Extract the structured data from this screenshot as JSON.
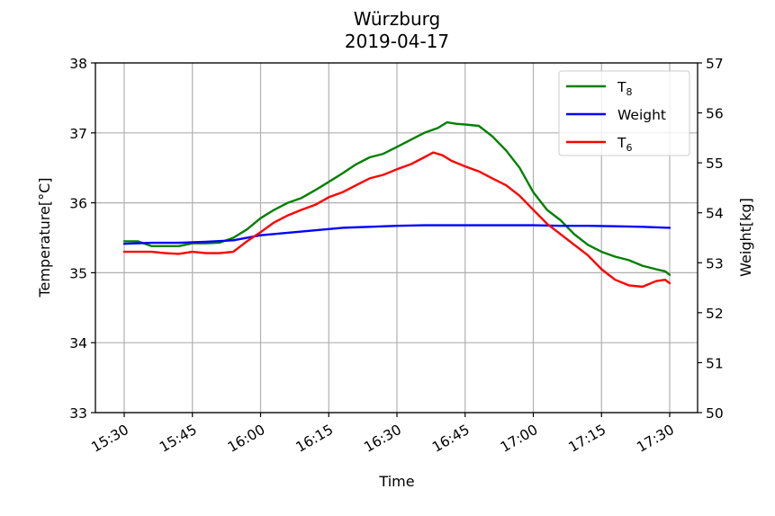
{
  "chart_data": {
    "type": "line",
    "title_line1": "Würzburg",
    "title_line2": "2019-04-17",
    "xlabel": "Time",
    "ylabel_left": "Temperature[°C]",
    "ylabel_right": "Weight[kg]",
    "grid": true,
    "legend_position": "top-right",
    "x_ticks": [
      "15:30",
      "15:45",
      "16:00",
      "16:15",
      "16:30",
      "16:45",
      "17:00",
      "17:15",
      "17:30"
    ],
    "x_range_minutes": [
      930,
      1050
    ],
    "ylim_left": [
      33,
      38
    ],
    "ylim_right": [
      50,
      57
    ],
    "yticks_left": [
      33,
      34,
      35,
      36,
      37,
      38
    ],
    "yticks_right": [
      50,
      51,
      52,
      53,
      54,
      55,
      56,
      57
    ],
    "series": [
      {
        "name": "T",
        "subscript": "8",
        "axis": "left",
        "color": "#008000",
        "points": [
          [
            "15:30",
            35.45
          ],
          [
            "15:33",
            35.45
          ],
          [
            "15:36",
            35.38
          ],
          [
            "15:39",
            35.38
          ],
          [
            "15:42",
            35.38
          ],
          [
            "15:45",
            35.42
          ],
          [
            "15:48",
            35.42
          ],
          [
            "15:51",
            35.43
          ],
          [
            "15:54",
            35.5
          ],
          [
            "15:57",
            35.62
          ],
          [
            "16:00",
            35.78
          ],
          [
            "16:03",
            35.9
          ],
          [
            "16:06",
            36.0
          ],
          [
            "16:09",
            36.07
          ],
          [
            "16:12",
            36.18
          ],
          [
            "16:15",
            36.3
          ],
          [
            "16:18",
            36.42
          ],
          [
            "16:21",
            36.55
          ],
          [
            "16:24",
            36.65
          ],
          [
            "16:27",
            36.7
          ],
          [
            "16:30",
            36.8
          ],
          [
            "16:33",
            36.9
          ],
          [
            "16:36",
            37.0
          ],
          [
            "16:39",
            37.07
          ],
          [
            "16:41",
            37.15
          ],
          [
            "16:43",
            37.13
          ],
          [
            "16:45",
            37.12
          ],
          [
            "16:48",
            37.1
          ],
          [
            "16:51",
            36.95
          ],
          [
            "16:54",
            36.75
          ],
          [
            "16:57",
            36.5
          ],
          [
            "17:00",
            36.15
          ],
          [
            "17:03",
            35.9
          ],
          [
            "17:06",
            35.75
          ],
          [
            "17:09",
            35.55
          ],
          [
            "17:12",
            35.4
          ],
          [
            "17:15",
            35.3
          ],
          [
            "17:18",
            35.23
          ],
          [
            "17:21",
            35.18
          ],
          [
            "17:24",
            35.1
          ],
          [
            "17:27",
            35.05
          ],
          [
            "17:29",
            35.02
          ],
          [
            "17:30",
            34.97
          ]
        ]
      },
      {
        "name": "Weight",
        "axis": "right",
        "color": "#0000ff",
        "points": [
          [
            "15:30",
            53.38
          ],
          [
            "15:36",
            53.4
          ],
          [
            "15:42",
            53.4
          ],
          [
            "15:48",
            53.42
          ],
          [
            "15:54",
            53.45
          ],
          [
            "16:00",
            53.55
          ],
          [
            "16:06",
            53.6
          ],
          [
            "16:12",
            53.65
          ],
          [
            "16:18",
            53.7
          ],
          [
            "16:24",
            53.72
          ],
          [
            "16:30",
            53.74
          ],
          [
            "16:36",
            53.75
          ],
          [
            "16:42",
            53.75
          ],
          [
            "16:48",
            53.75
          ],
          [
            "16:54",
            53.75
          ],
          [
            "17:00",
            53.75
          ],
          [
            "17:06",
            53.74
          ],
          [
            "17:12",
            53.74
          ],
          [
            "17:18",
            53.73
          ],
          [
            "17:24",
            53.72
          ],
          [
            "17:30",
            53.7
          ]
        ]
      },
      {
        "name": "T",
        "subscript": "6",
        "axis": "left",
        "color": "#ff0000",
        "points": [
          [
            "15:30",
            35.3
          ],
          [
            "15:33",
            35.3
          ],
          [
            "15:36",
            35.3
          ],
          [
            "15:39",
            35.28
          ],
          [
            "15:42",
            35.27
          ],
          [
            "15:45",
            35.3
          ],
          [
            "15:48",
            35.28
          ],
          [
            "15:51",
            35.28
          ],
          [
            "15:54",
            35.3
          ],
          [
            "15:57",
            35.45
          ],
          [
            "16:00",
            35.58
          ],
          [
            "16:03",
            35.72
          ],
          [
            "16:06",
            35.82
          ],
          [
            "16:09",
            35.9
          ],
          [
            "16:12",
            35.97
          ],
          [
            "16:15",
            36.08
          ],
          [
            "16:18",
            36.15
          ],
          [
            "16:21",
            36.25
          ],
          [
            "16:24",
            36.35
          ],
          [
            "16:27",
            36.4
          ],
          [
            "16:30",
            36.48
          ],
          [
            "16:33",
            36.55
          ],
          [
            "16:36",
            36.65
          ],
          [
            "16:38",
            36.72
          ],
          [
            "16:40",
            36.68
          ],
          [
            "16:42",
            36.6
          ],
          [
            "16:45",
            36.52
          ],
          [
            "16:48",
            36.45
          ],
          [
            "16:51",
            36.35
          ],
          [
            "16:54",
            36.25
          ],
          [
            "16:57",
            36.1
          ],
          [
            "17:00",
            35.9
          ],
          [
            "17:03",
            35.7
          ],
          [
            "17:06",
            35.55
          ],
          [
            "17:09",
            35.4
          ],
          [
            "17:12",
            35.25
          ],
          [
            "17:15",
            35.05
          ],
          [
            "17:18",
            34.9
          ],
          [
            "17:21",
            34.82
          ],
          [
            "17:24",
            34.8
          ],
          [
            "17:27",
            34.88
          ],
          [
            "17:29",
            34.9
          ],
          [
            "17:30",
            34.85
          ]
        ]
      }
    ]
  }
}
